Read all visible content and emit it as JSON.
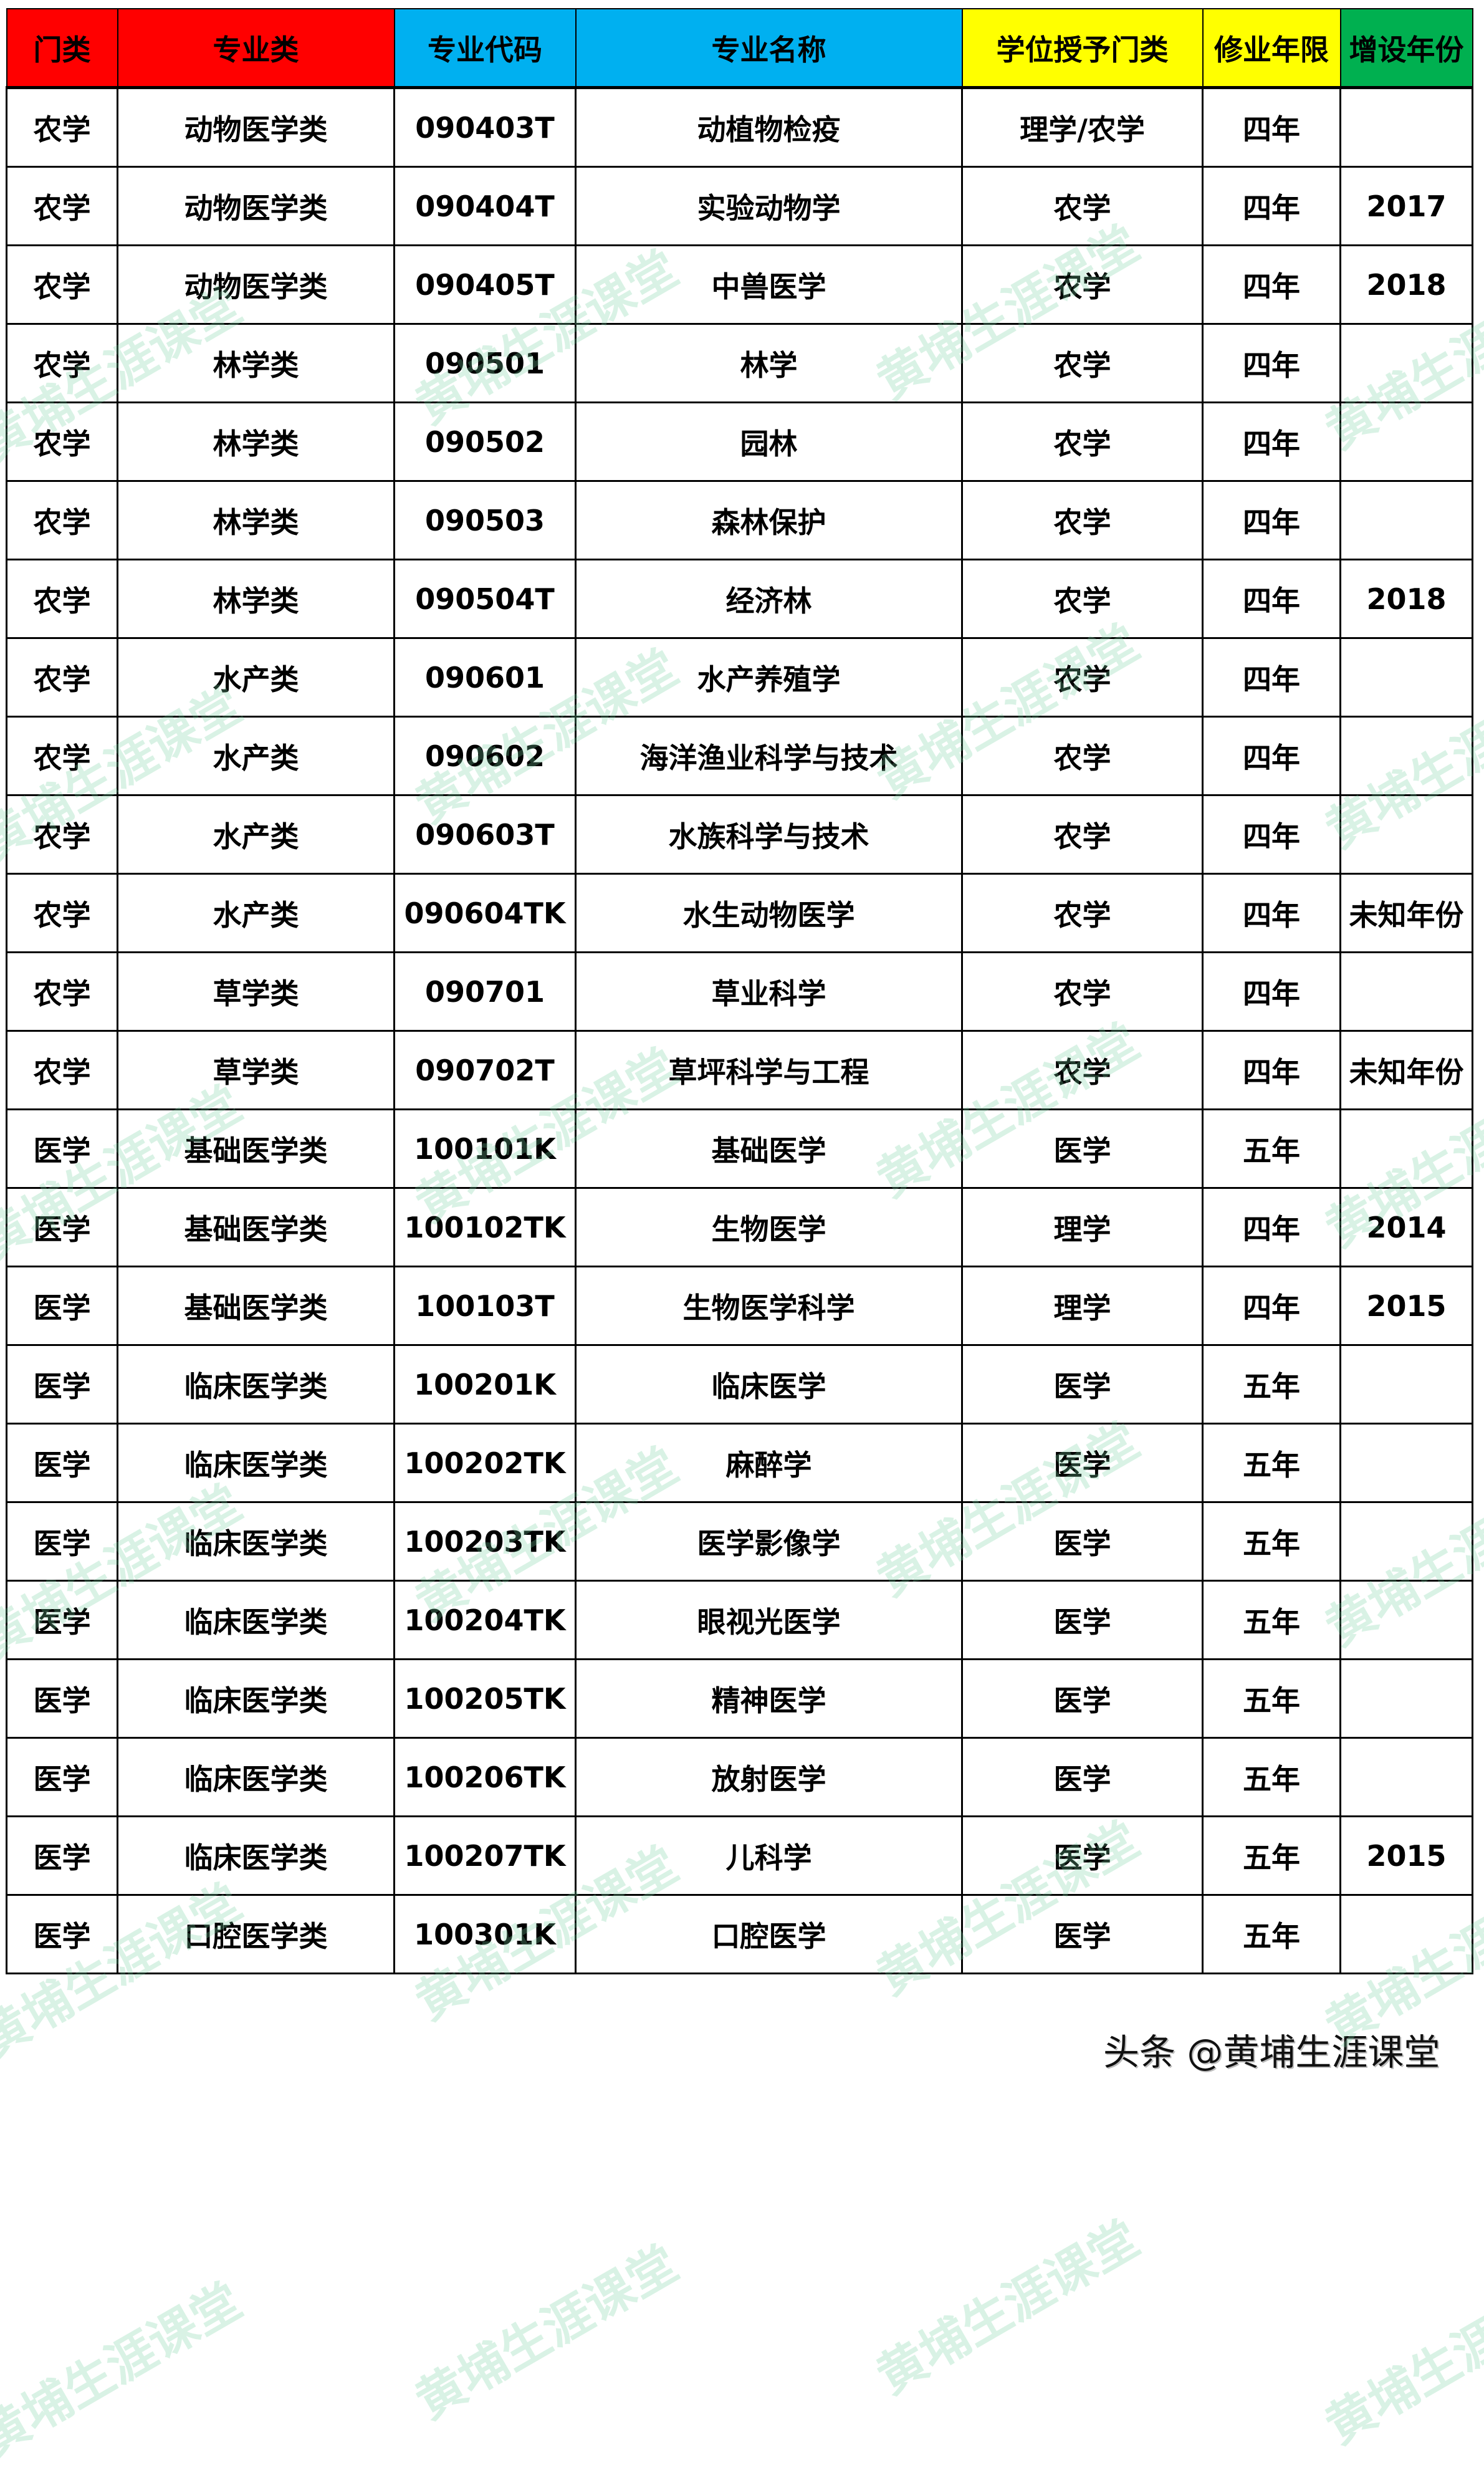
{
  "headers": [
    {
      "label": "门类",
      "color": "#ff0000"
    },
    {
      "label": "专业类",
      "color": "#ff0000"
    },
    {
      "label": "专业代码",
      "color": "#00b0f0"
    },
    {
      "label": "专业名称",
      "color": "#00b0f0"
    },
    {
      "label": "学位授予门类",
      "color": "#ffff00"
    },
    {
      "label": "修业年限",
      "color": "#ffff00"
    },
    {
      "label": "增设年份",
      "color": "#00b050"
    }
  ],
  "rows": [
    [
      "农学",
      "动物医学类",
      "090403T",
      "动植物检疫",
      "理学/农学",
      "四年",
      ""
    ],
    [
      "农学",
      "动物医学类",
      "090404T",
      "实验动物学",
      "农学",
      "四年",
      "2017"
    ],
    [
      "农学",
      "动物医学类",
      "090405T",
      "中兽医学",
      "农学",
      "四年",
      "2018"
    ],
    [
      "农学",
      "林学类",
      "090501",
      "林学",
      "农学",
      "四年",
      ""
    ],
    [
      "农学",
      "林学类",
      "090502",
      "园林",
      "农学",
      "四年",
      ""
    ],
    [
      "农学",
      "林学类",
      "090503",
      "森林保护",
      "农学",
      "四年",
      ""
    ],
    [
      "农学",
      "林学类",
      "090504T",
      "经济林",
      "农学",
      "四年",
      "2018"
    ],
    [
      "农学",
      "水产类",
      "090601",
      "水产养殖学",
      "农学",
      "四年",
      ""
    ],
    [
      "农学",
      "水产类",
      "090602",
      "海洋渔业科学与技术",
      "农学",
      "四年",
      ""
    ],
    [
      "农学",
      "水产类",
      "090603T",
      "水族科学与技术",
      "农学",
      "四年",
      ""
    ],
    [
      "农学",
      "水产类",
      "090604TK",
      "水生动物医学",
      "农学",
      "四年",
      "未知年份"
    ],
    [
      "农学",
      "草学类",
      "090701",
      "草业科学",
      "农学",
      "四年",
      ""
    ],
    [
      "农学",
      "草学类",
      "090702T",
      "草坪科学与工程",
      "农学",
      "四年",
      "未知年份"
    ],
    [
      "医学",
      "基础医学类",
      "100101K",
      "基础医学",
      "医学",
      "五年",
      ""
    ],
    [
      "医学",
      "基础医学类",
      "100102TK",
      "生物医学",
      "理学",
      "四年",
      "2014"
    ],
    [
      "医学",
      "基础医学类",
      "100103T",
      "生物医学科学",
      "理学",
      "四年",
      "2015"
    ],
    [
      "医学",
      "临床医学类",
      "100201K",
      "临床医学",
      "医学",
      "五年",
      ""
    ],
    [
      "医学",
      "临床医学类",
      "100202TK",
      "麻醉学",
      "医学",
      "五年",
      ""
    ],
    [
      "医学",
      "临床医学类",
      "100203TK",
      "医学影像学",
      "医学",
      "五年",
      ""
    ],
    [
      "医学",
      "临床医学类",
      "100204TK",
      "眼视光医学",
      "医学",
      "五年",
      ""
    ],
    [
      "医学",
      "临床医学类",
      "100205TK",
      "精神医学",
      "医学",
      "五年",
      ""
    ],
    [
      "医学",
      "临床医学类",
      "100206TK",
      "放射医学",
      "医学",
      "五年",
      ""
    ],
    [
      "医学",
      "临床医学类",
      "100207TK",
      "儿科学",
      "医学",
      "五年",
      "2015"
    ],
    [
      "医学",
      "口腔医学类",
      "100301K",
      "口腔医学",
      "医学",
      "五年",
      ""
    ]
  ],
  "watermark": "黄埔生涯课堂",
  "footer": "头条 @黄埔生涯课堂"
}
